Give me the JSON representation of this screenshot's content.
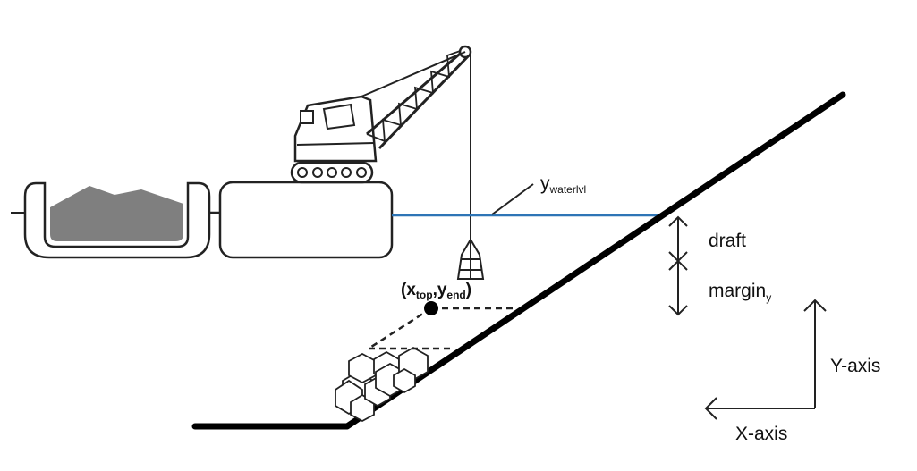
{
  "labels": {
    "water_level_main": "y",
    "water_level_sub": "waterlvl",
    "draft": "draft",
    "margin_main": "margin",
    "margin_sub": "y",
    "point_open": "(x",
    "point_x_sub": "top",
    "point_comma": ",y",
    "point_y_sub": "end",
    "point_close": ")",
    "y_axis": "Y-axis",
    "x_axis": "X-axis"
  },
  "colors": {
    "water_line": "#2e75b6",
    "slope": "#000000",
    "ink": "#222222",
    "sediment_fill": "#7f7f7f",
    "rock_fill": "#ffffff"
  }
}
